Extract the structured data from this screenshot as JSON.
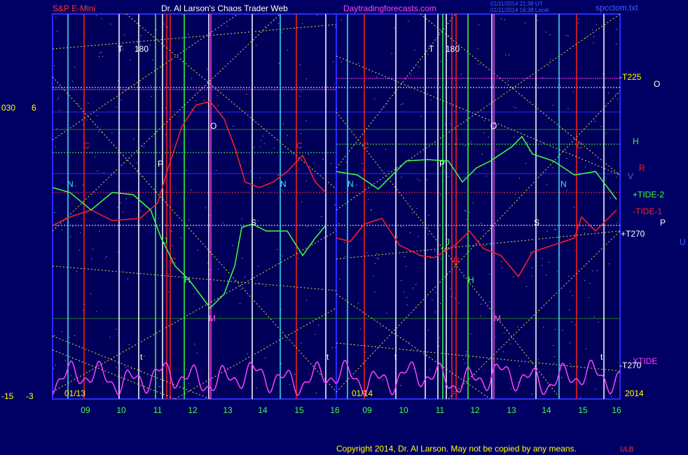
{
  "header": {
    "symbol": "S&P E-Mini",
    "title": "Dr. Al Larson's Chaos Trader Web",
    "site": "Daytradingforecasts.com",
    "time_ut": "01/11/2014 21:38 UT",
    "time_local": "01/11/2014 16:38 Local",
    "file": "spcctom.txt"
  },
  "left_labels": [
    "030",
    "6",
    "-15",
    "-3"
  ],
  "x_labels": [
    "01/13",
    "09",
    "10",
    "11",
    "12",
    "13",
    "14",
    "15",
    "16",
    "01/14",
    "09",
    "10",
    "11",
    "12",
    "13",
    "14",
    "15",
    "16",
    "2014"
  ],
  "annotations": [
    "T",
    "180",
    "C",
    "N",
    "P",
    "O",
    "C",
    "N",
    "J",
    "C",
    "H",
    "S",
    "M",
    "t",
    "t",
    "T",
    "180",
    "C",
    "N",
    "P",
    "O",
    "C",
    "N",
    "J",
    "R",
    "H",
    "S",
    "M",
    "t",
    "t"
  ],
  "right_labels": [
    "-T225",
    "O",
    "H",
    "V",
    "R",
    "+TIDE-2",
    "-TIDE-1",
    "+T270",
    "P",
    "U",
    "XTIDE",
    "-T270"
  ],
  "footer": {
    "copyright": "Copyright 2014, Dr. Al Larson. May not be copied by any means.",
    "mark": "ULB"
  }
}
